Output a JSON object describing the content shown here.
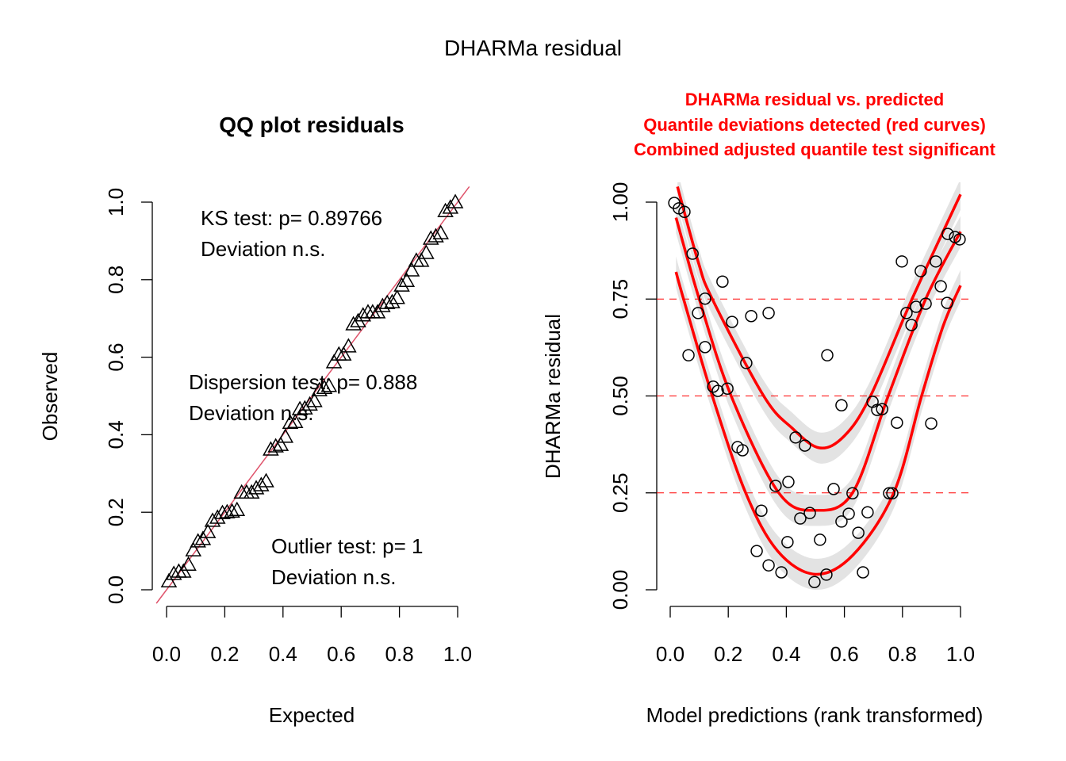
{
  "main_title": "DHARMa residual",
  "colors": {
    "red": "#ff0000",
    "qq_line": "#df536b",
    "band": "#dedede"
  },
  "chart_data": [
    {
      "type": "scatter",
      "title": "QQ plot residuals",
      "xlabel": "Expected",
      "ylabel": "Observed",
      "xlim": [
        0,
        1
      ],
      "ylim": [
        0,
        1
      ],
      "xticks": [
        "0.0",
        "0.2",
        "0.4",
        "0.6",
        "0.8",
        "1.0"
      ],
      "yticks": [
        "0.0",
        "0.2",
        "0.4",
        "0.6",
        "0.8",
        "1.0"
      ],
      "marker": "triangle",
      "reference_line": "y = x",
      "annotations": {
        "ks_line1": "KS test: p= 0.89766",
        "ks_line2": "Deviation  n.s.",
        "disp_line1": "Dispersion test: p= 0.888",
        "disp_line2": "Deviation  n.s.",
        "out_line1": "Outlier test: p= 1",
        "out_line2": "Deviation  n.s."
      },
      "expected": [
        0.008,
        0.025,
        0.042,
        0.058,
        0.075,
        0.092,
        0.108,
        0.125,
        0.142,
        0.158,
        0.175,
        0.192,
        0.208,
        0.225,
        0.242,
        0.258,
        0.275,
        0.292,
        0.308,
        0.325,
        0.342,
        0.358,
        0.375,
        0.392,
        0.408,
        0.425,
        0.442,
        0.458,
        0.475,
        0.492,
        0.508,
        0.525,
        0.542,
        0.558,
        0.575,
        0.592,
        0.608,
        0.625,
        0.642,
        0.658,
        0.675,
        0.692,
        0.708,
        0.725,
        0.742,
        0.758,
        0.775,
        0.792,
        0.808,
        0.825,
        0.842,
        0.858,
        0.875,
        0.892,
        0.908,
        0.925,
        0.942,
        0.958,
        0.975,
        0.992
      ],
      "observed": [
        0.02,
        0.039,
        0.045,
        0.045,
        0.063,
        0.1,
        0.123,
        0.129,
        0.147,
        0.176,
        0.184,
        0.196,
        0.198,
        0.2,
        0.204,
        0.249,
        0.249,
        0.249,
        0.26,
        0.268,
        0.278,
        0.36,
        0.368,
        0.372,
        0.393,
        0.429,
        0.431,
        0.464,
        0.466,
        0.476,
        0.485,
        0.513,
        0.519,
        0.524,
        0.585,
        0.605,
        0.605,
        0.626,
        0.683,
        0.691,
        0.706,
        0.714,
        0.714,
        0.714,
        0.73,
        0.738,
        0.74,
        0.751,
        0.783,
        0.795,
        0.822,
        0.847,
        0.847,
        0.867,
        0.904,
        0.91,
        0.918,
        0.975,
        0.984,
        0.998
      ]
    },
    {
      "type": "scatter",
      "title_lines": [
        "DHARMa residual vs. predicted",
        "Quantile deviations detected (red curves)",
        "Combined adjusted quantile test significant"
      ],
      "xlabel": "Model predictions (rank transformed)",
      "ylabel": "DHARMa residual",
      "xlim": [
        0,
        1
      ],
      "ylim": [
        0,
        1
      ],
      "xticks": [
        "0.0",
        "0.2",
        "0.4",
        "0.6",
        "0.8",
        "1.0"
      ],
      "yticks": [
        "0.00",
        "0.25",
        "0.50",
        "0.75",
        "1.00"
      ],
      "reference_lines": [
        0.25,
        0.5,
        0.75
      ],
      "marker": "circle",
      "x": [
        0.014,
        0.03,
        0.049,
        0.077,
        0.18,
        0.12,
        0.096,
        0.063,
        0.12,
        0.148,
        0.164,
        0.197,
        0.213,
        0.279,
        0.339,
        0.262,
        0.232,
        0.249,
        0.363,
        0.407,
        0.314,
        0.404,
        0.298,
        0.339,
        0.383,
        0.432,
        0.464,
        0.481,
        0.448,
        0.497,
        0.516,
        0.538,
        0.541,
        0.563,
        0.59,
        0.59,
        0.615,
        0.628,
        0.648,
        0.664,
        0.68,
        0.697,
        0.713,
        0.73,
        0.754,
        0.765,
        0.781,
        0.798,
        0.814,
        0.831,
        0.847,
        0.863,
        0.88,
        0.899,
        0.915,
        0.932,
        0.954,
        0.956,
        0.981,
        0.997
      ],
      "y": [
        0.998,
        0.984,
        0.975,
        0.867,
        0.795,
        0.751,
        0.714,
        0.605,
        0.626,
        0.524,
        0.513,
        0.519,
        0.691,
        0.706,
        0.714,
        0.585,
        0.368,
        0.36,
        0.268,
        0.278,
        0.204,
        0.123,
        0.1,
        0.063,
        0.045,
        0.393,
        0.372,
        0.198,
        0.184,
        0.02,
        0.129,
        0.039,
        0.605,
        0.26,
        0.476,
        0.176,
        0.196,
        0.249,
        0.147,
        0.045,
        0.2,
        0.485,
        0.464,
        0.466,
        0.249,
        0.249,
        0.431,
        0.847,
        0.714,
        0.683,
        0.73,
        0.822,
        0.738,
        0.429,
        0.847,
        0.783,
        0.74,
        0.918,
        0.91,
        0.904
      ],
      "quantile_curves": [
        {
          "quantile": 0.25,
          "x": [
            0.02,
            0.046,
            0.145,
            0.26,
            0.37,
            0.5,
            0.63,
            0.77,
            0.866,
            0.94,
            1.0
          ],
          "y": [
            0.82,
            0.75,
            0.5,
            0.25,
            0.1,
            0.04,
            0.09,
            0.25,
            0.5,
            0.68,
            0.785
          ]
        },
        {
          "quantile": 0.5,
          "x": [
            0.02,
            0.1,
            0.21,
            0.374,
            0.5,
            0.628,
            0.751,
            0.88,
            1.0
          ],
          "y": [
            0.96,
            0.75,
            0.5,
            0.25,
            0.205,
            0.25,
            0.5,
            0.75,
            0.924
          ]
        },
        {
          "quantile": 0.75,
          "x": [
            0.025,
            0.096,
            0.145,
            0.322,
            0.42,
            0.514,
            0.6,
            0.69,
            0.833,
            1.0
          ],
          "y": [
            1.04,
            0.847,
            0.75,
            0.5,
            0.417,
            0.366,
            0.397,
            0.5,
            0.75,
            1.02
          ]
        }
      ]
    }
  ]
}
